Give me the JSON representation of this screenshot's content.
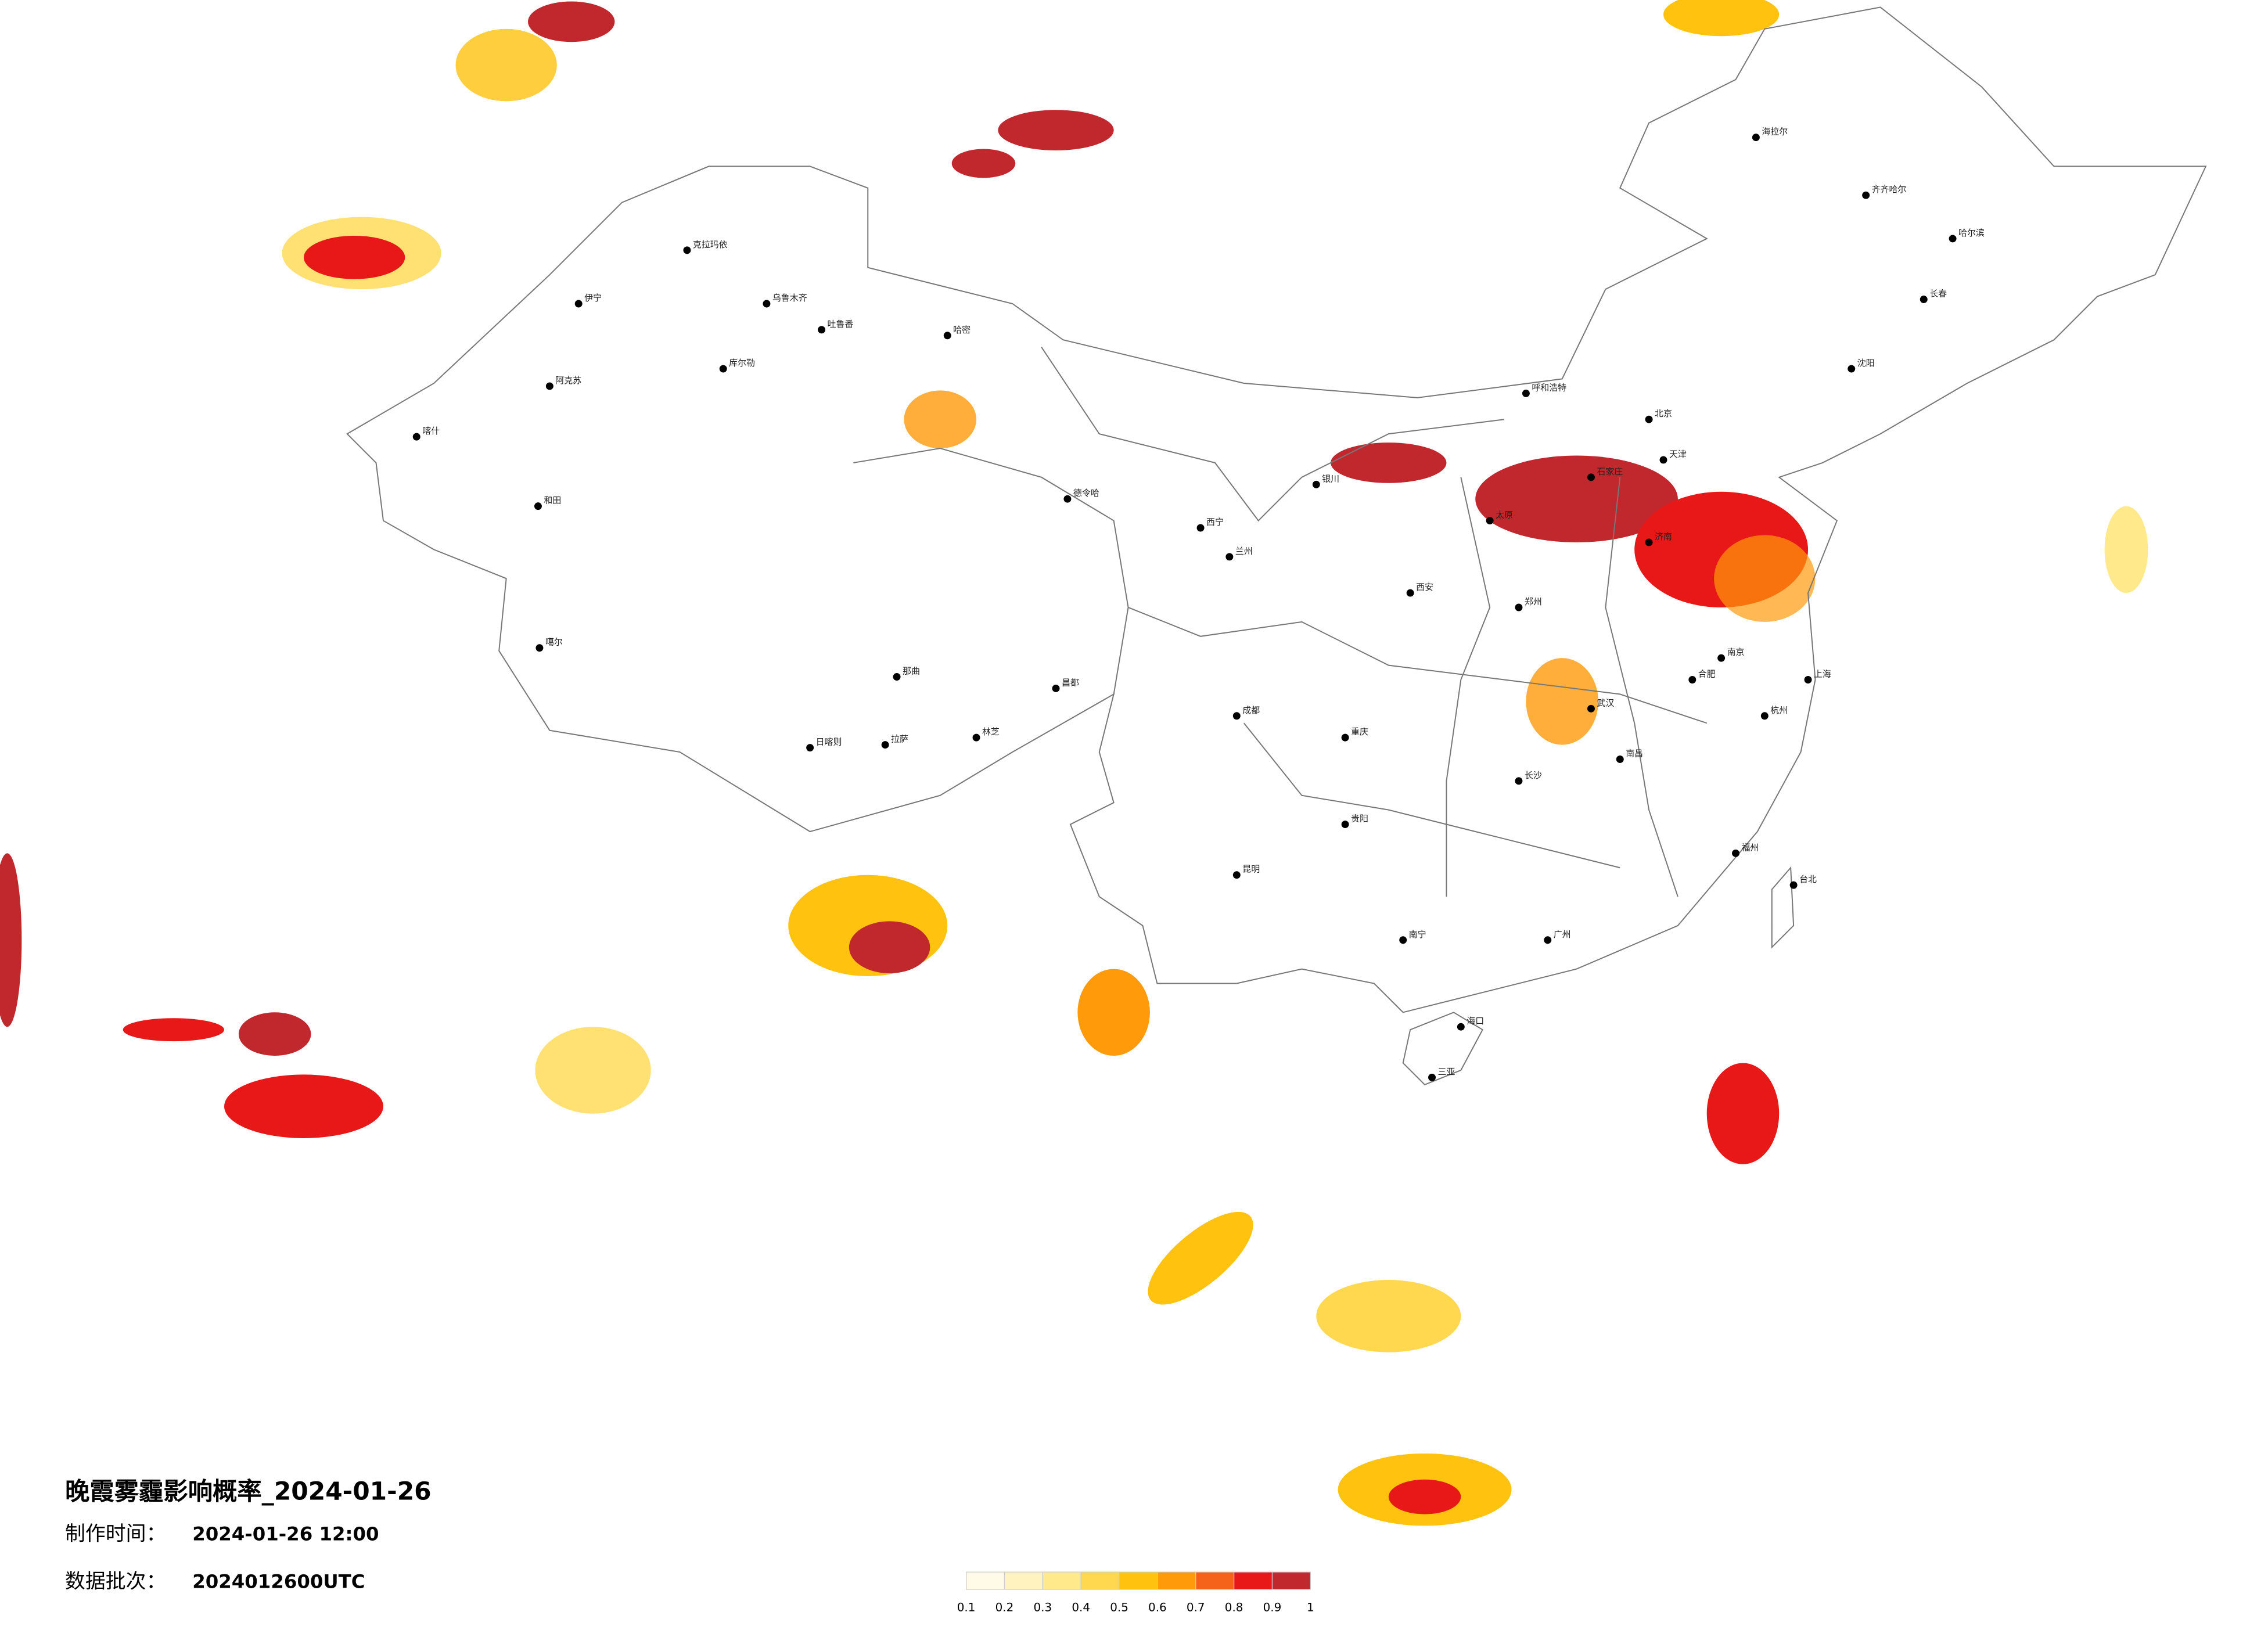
{
  "header": {
    "title": "晚霞雾霾影响概率_2024-01-26",
    "made_label": "制作时间：",
    "made_time": "2024-01-26 12:00",
    "batch_label": "数据批次：",
    "batch": "2024012600UTC"
  },
  "legend": {
    "ticks": [
      0.1,
      0.2,
      0.3,
      0.4,
      0.5,
      0.6,
      0.7,
      0.8,
      0.9,
      1
    ],
    "colors": [
      "#fffbe6",
      "#fff3bf",
      "#ffe98a",
      "#ffd84f",
      "#ffc20e",
      "#ff9a0a",
      "#f5621a",
      "#e81818",
      "#c0282e"
    ]
  },
  "cities": [
    "克拉玛依",
    "伊宁",
    "乌鲁木齐",
    "吐鲁番",
    "哈密",
    "库尔勒",
    "阿克苏",
    "喀什",
    "和田",
    "德令哈",
    "噶尔",
    "那曲",
    "日喀则",
    "拉萨",
    "林芝",
    "昌都",
    "海拉尔",
    "齐齐哈尔",
    "哈尔滨",
    "长春",
    "沈阳",
    "北京",
    "天津",
    "呼和浩特",
    "兰州",
    "西宁",
    "银川",
    "西安",
    "成都",
    "重庆",
    "贵阳",
    "昆明",
    "南宁",
    "广州",
    "海口",
    "三亚",
    "武汉",
    "长沙",
    "南昌",
    "福州",
    "台北",
    "上海",
    "南京",
    "杭州",
    "济南",
    "郑州",
    "太原",
    "石家庄",
    "合肥"
  ]
}
